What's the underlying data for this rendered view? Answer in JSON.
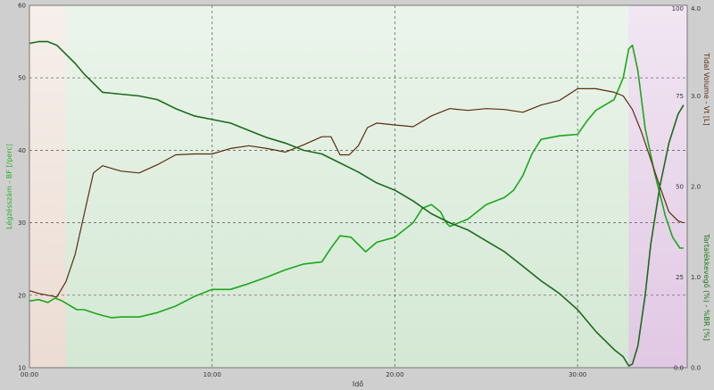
{
  "chart_data": {
    "type": "line",
    "xlabel": "Idő",
    "x_ticks": [
      "00:00",
      "10:00",
      "20:00",
      "30:00"
    ],
    "x_range_minutes": [
      0,
      36
    ],
    "phases": [
      {
        "from": 0,
        "to": 2,
        "color": "#ecdcd3"
      },
      {
        "from": 2,
        "to": 32.8,
        "color": "#d4e8d4"
      },
      {
        "from": 32.8,
        "to": 36,
        "color": "#e1c8e4"
      }
    ],
    "axes": {
      "left": {
        "label": "Légzésszám - BF [/perc]",
        "min": 10,
        "max": 60,
        "ticks": [
          10,
          20,
          30,
          40,
          50,
          60
        ],
        "color": "#2bb02b"
      },
      "right_inner": {
        "label": "Tidal Volume - Vt [L]",
        "min": 0,
        "max": 4,
        "ticks": [
          "0.0",
          "1.0",
          "2.0",
          "3.0",
          "4.0"
        ],
        "color": "#5a2e0c"
      },
      "right_outer": {
        "label": "Tartalékkevegő (%) - %BR [%]",
        "min": 0,
        "max": 100,
        "ticks": [
          "0.0",
          "25",
          "50",
          "75",
          "100"
        ],
        "color": "#1b7a1b"
      }
    },
    "series": [
      {
        "name": "Légzésszám - BF [/perc]",
        "axis": "left",
        "color": "#1aa81a",
        "points": [
          [
            0,
            19.2
          ],
          [
            0.5,
            19.4
          ],
          [
            1,
            19.0
          ],
          [
            1.4,
            19.6
          ],
          [
            1.8,
            19.2
          ],
          [
            2.2,
            18.6
          ],
          [
            2.6,
            18.0
          ],
          [
            3,
            18.0
          ],
          [
            3.6,
            17.5
          ],
          [
            4,
            17.2
          ],
          [
            4.5,
            16.9
          ],
          [
            5,
            17.0
          ],
          [
            6,
            17.0
          ],
          [
            7,
            17.6
          ],
          [
            8,
            18.5
          ],
          [
            9,
            19.8
          ],
          [
            10,
            20.8
          ],
          [
            11,
            20.8
          ],
          [
            12,
            21.6
          ],
          [
            13,
            22.5
          ],
          [
            14,
            23.5
          ],
          [
            15,
            24.3
          ],
          [
            16,
            24.6
          ],
          [
            16.5,
            26.5
          ],
          [
            17,
            28.2
          ],
          [
            17.6,
            28.0
          ],
          [
            18,
            27.0
          ],
          [
            18.4,
            26.0
          ],
          [
            19,
            27.3
          ],
          [
            20,
            28.0
          ],
          [
            21,
            30.0
          ],
          [
            21.5,
            32.0
          ],
          [
            22,
            32.5
          ],
          [
            22.5,
            31.5
          ],
          [
            22.8,
            30.0
          ],
          [
            23,
            29.5
          ],
          [
            24,
            30.5
          ],
          [
            25,
            32.5
          ],
          [
            26,
            33.5
          ],
          [
            26.5,
            34.5
          ],
          [
            27,
            36.5
          ],
          [
            27.5,
            39.5
          ],
          [
            28,
            41.5
          ],
          [
            29,
            42.0
          ],
          [
            30,
            42.2
          ],
          [
            30.5,
            44.0
          ],
          [
            31,
            45.5
          ],
          [
            32,
            47.0
          ],
          [
            32.5,
            50.0
          ],
          [
            32.8,
            54.0
          ],
          [
            33,
            54.5
          ],
          [
            33.3,
            51.0
          ],
          [
            33.7,
            43.0
          ],
          [
            34.2,
            37.0
          ],
          [
            34.8,
            31.0
          ],
          [
            35.2,
            28.0
          ],
          [
            35.6,
            26.5
          ],
          [
            35.8,
            26.5
          ]
        ]
      },
      {
        "name": "Tidal Volume - Vt [L]",
        "axis": "right_inner",
        "color": "#5a2e0c",
        "points": [
          [
            0,
            0.85
          ],
          [
            0.5,
            0.82
          ],
          [
            1,
            0.8
          ],
          [
            1.5,
            0.78
          ],
          [
            2,
            0.95
          ],
          [
            2.5,
            1.25
          ],
          [
            3,
            1.7
          ],
          [
            3.5,
            2.15
          ],
          [
            4,
            2.23
          ],
          [
            5,
            2.17
          ],
          [
            6,
            2.15
          ],
          [
            7,
            2.24
          ],
          [
            8,
            2.35
          ],
          [
            9,
            2.36
          ],
          [
            10,
            2.36
          ],
          [
            11,
            2.42
          ],
          [
            12,
            2.45
          ],
          [
            13,
            2.42
          ],
          [
            14,
            2.38
          ],
          [
            15,
            2.46
          ],
          [
            16,
            2.55
          ],
          [
            16.5,
            2.55
          ],
          [
            17,
            2.35
          ],
          [
            17.5,
            2.35
          ],
          [
            18,
            2.45
          ],
          [
            18.5,
            2.65
          ],
          [
            19,
            2.7
          ],
          [
            20,
            2.68
          ],
          [
            21,
            2.66
          ],
          [
            21.5,
            2.72
          ],
          [
            22,
            2.78
          ],
          [
            23,
            2.86
          ],
          [
            24,
            2.84
          ],
          [
            25,
            2.86
          ],
          [
            26,
            2.85
          ],
          [
            27,
            2.82
          ],
          [
            28,
            2.9
          ],
          [
            29,
            2.95
          ],
          [
            30,
            3.08
          ],
          [
            31,
            3.08
          ],
          [
            32,
            3.04
          ],
          [
            32.5,
            3.0
          ],
          [
            33,
            2.85
          ],
          [
            33.5,
            2.6
          ],
          [
            34,
            2.3
          ],
          [
            34.5,
            2.0
          ],
          [
            35,
            1.72
          ],
          [
            35.5,
            1.62
          ],
          [
            35.8,
            1.6
          ]
        ]
      },
      {
        "name": "Tartalékkevegő (%) - %BR [%]",
        "axis": "right_outer",
        "color": "#1b6b1b",
        "points": [
          [
            0,
            89.5
          ],
          [
            0.5,
            90.0
          ],
          [
            1,
            90.0
          ],
          [
            1.5,
            89.0
          ],
          [
            2,
            86.5
          ],
          [
            2.5,
            84.0
          ],
          [
            3,
            81.0
          ],
          [
            3.5,
            78.5
          ],
          [
            4,
            76.0
          ],
          [
            5,
            75.5
          ],
          [
            6,
            75.0
          ],
          [
            7,
            74.0
          ],
          [
            8,
            71.5
          ],
          [
            9,
            69.5
          ],
          [
            10,
            68.5
          ],
          [
            11,
            67.5
          ],
          [
            12,
            65.5
          ],
          [
            13,
            63.5
          ],
          [
            14,
            62.0
          ],
          [
            15,
            60.0
          ],
          [
            16,
            59.0
          ],
          [
            17,
            56.5
          ],
          [
            18,
            54.0
          ],
          [
            19,
            51.0
          ],
          [
            20,
            49.0
          ],
          [
            21,
            46.0
          ],
          [
            22,
            42.5
          ],
          [
            23,
            40.0
          ],
          [
            24,
            38.0
          ],
          [
            25,
            35.0
          ],
          [
            26,
            32.0
          ],
          [
            27,
            28.0
          ],
          [
            28,
            24.0
          ],
          [
            29,
            20.5
          ],
          [
            30,
            16.0
          ],
          [
            31,
            10.0
          ],
          [
            31.5,
            7.5
          ],
          [
            32,
            5.0
          ],
          [
            32.5,
            3.0
          ],
          [
            32.8,
            0.5
          ],
          [
            33,
            1.0
          ],
          [
            33.3,
            6.0
          ],
          [
            33.7,
            20.0
          ],
          [
            34,
            34.0
          ],
          [
            34.5,
            50.0
          ],
          [
            35,
            62.0
          ],
          [
            35.5,
            70.0
          ],
          [
            35.8,
            72.5
          ]
        ]
      }
    ]
  }
}
